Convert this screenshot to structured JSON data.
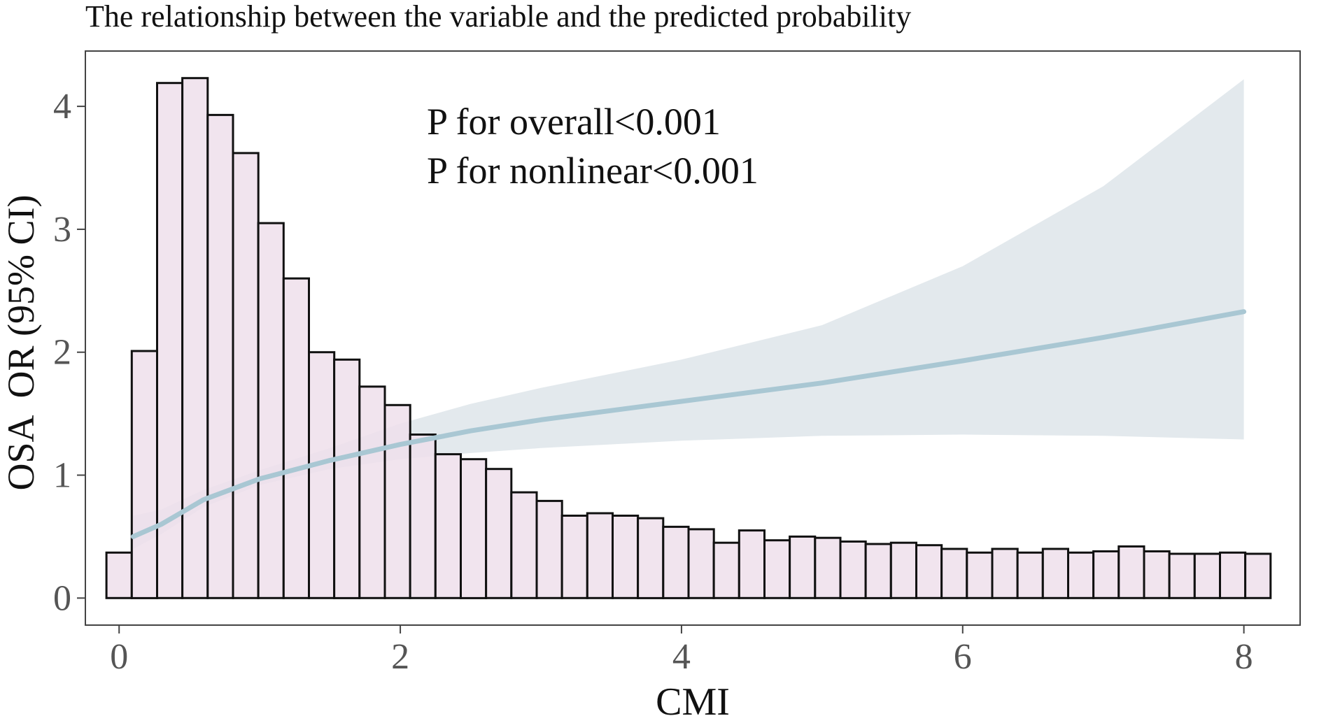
{
  "colors": {
    "bar_fill": "#EEDFEB",
    "bar_stroke": "#111111",
    "ci_fill": "#E3E9ED",
    "curve": "#A9C7D3",
    "axis": "#444444",
    "tick_label": "#555555",
    "text": "#111111"
  },
  "chart_data": {
    "type": "bar",
    "title": "The relationship between the variable and the predicted probability",
    "xlabel": "CMI",
    "ylabel": "OSA  OR (95% CI)",
    "xlim": [
      -0.24,
      8.4
    ],
    "ylim": [
      -0.22,
      4.45
    ],
    "xticks": [
      0,
      2,
      4,
      6,
      8
    ],
    "yticks": [
      0,
      1,
      2,
      3,
      4
    ],
    "grid": false,
    "annotations": [
      "P for overall<0.001",
      "P for nonlinear<0.001"
    ],
    "histogram": {
      "bin_start": -0.09,
      "bin_width": 0.18,
      "heights": [
        0.37,
        2.01,
        4.19,
        4.23,
        3.93,
        3.62,
        3.05,
        2.6,
        2.0,
        1.94,
        1.72,
        1.57,
        1.33,
        1.17,
        1.13,
        1.05,
        0.86,
        0.79,
        0.67,
        0.69,
        0.67,
        0.65,
        0.58,
        0.56,
        0.45,
        0.55,
        0.47,
        0.5,
        0.49,
        0.46,
        0.44,
        0.45,
        0.43,
        0.4,
        0.37,
        0.4,
        0.37,
        0.4,
        0.37,
        0.38,
        0.42,
        0.38,
        0.36,
        0.36,
        0.37,
        0.36
      ]
    },
    "series": [
      {
        "name": "OR",
        "x": [
          0.1,
          0.3,
          0.6,
          1.0,
          1.5,
          2.0,
          2.5,
          3.0,
          4.0,
          5.0,
          6.0,
          7.0,
          8.0
        ],
        "values": [
          0.5,
          0.6,
          0.8,
          0.97,
          1.12,
          1.25,
          1.36,
          1.45,
          1.6,
          1.75,
          1.93,
          2.12,
          2.33
        ]
      }
    ],
    "ci": {
      "x": [
        0.1,
        0.3,
        0.6,
        1.0,
        1.5,
        2.0,
        2.5,
        3.0,
        4.0,
        5.0,
        6.0,
        7.0,
        8.0
      ],
      "lower": [
        0.4,
        0.52,
        0.74,
        0.92,
        1.05,
        1.13,
        1.18,
        1.22,
        1.28,
        1.32,
        1.33,
        1.32,
        1.29
      ],
      "upper": [
        0.67,
        0.72,
        0.88,
        1.04,
        1.22,
        1.42,
        1.58,
        1.71,
        1.94,
        2.22,
        2.7,
        3.35,
        4.22
      ]
    }
  }
}
